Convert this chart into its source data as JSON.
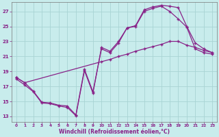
{
  "background_color": "#c8ecec",
  "grid_color": "#a8d4d4",
  "line_color": "#882288",
  "xlabel": "Windchill (Refroidissement éolien,°C)",
  "ylabel_ticks": [
    13,
    15,
    17,
    19,
    21,
    23,
    25,
    27
  ],
  "xticks": [
    0,
    1,
    2,
    3,
    4,
    5,
    6,
    7,
    8,
    9,
    10,
    11,
    12,
    13,
    14,
    15,
    16,
    17,
    18,
    19,
    20,
    21,
    22,
    23
  ],
  "xlim": [
    -0.5,
    23.5
  ],
  "ylim": [
    12.3,
    28.2
  ],
  "line1_x": [
    0,
    1,
    2,
    3,
    4,
    5,
    6,
    7,
    8,
    9,
    10,
    11,
    12,
    13,
    14,
    15,
    16,
    17,
    18,
    19,
    20,
    21,
    22,
    23
  ],
  "line1_y": [
    18.0,
    17.2,
    16.3,
    14.8,
    14.7,
    14.4,
    14.2,
    13.1,
    19.1,
    16.1,
    22.2,
    21.7,
    23.0,
    24.8,
    25.1,
    27.2,
    27.6,
    27.8,
    27.7,
    27.5,
    25.0,
    22.8,
    22.0,
    21.5
  ],
  "line2_x": [
    0,
    1,
    10,
    11,
    12,
    13,
    14,
    15,
    16,
    17,
    18,
    19,
    20,
    21,
    22,
    23
  ],
  "line2_y": [
    18.2,
    17.5,
    20.3,
    20.6,
    21.0,
    21.3,
    21.7,
    22.0,
    22.3,
    22.6,
    23.0,
    23.0,
    22.5,
    22.2,
    21.8,
    21.5
  ],
  "line3_x": [
    0,
    1,
    2,
    3,
    4,
    5,
    6,
    7,
    8,
    9,
    10,
    11,
    12,
    13,
    14,
    15,
    16,
    17,
    18,
    19,
    20,
    21,
    22,
    23
  ],
  "line3_y": [
    18.2,
    17.5,
    16.4,
    14.9,
    14.8,
    14.5,
    14.4,
    13.2,
    19.3,
    16.3,
    22.0,
    21.5,
    22.8,
    24.8,
    25.0,
    27.0,
    27.4,
    27.7,
    27.0,
    26.0,
    24.9,
    22.0,
    21.5,
    21.3
  ]
}
